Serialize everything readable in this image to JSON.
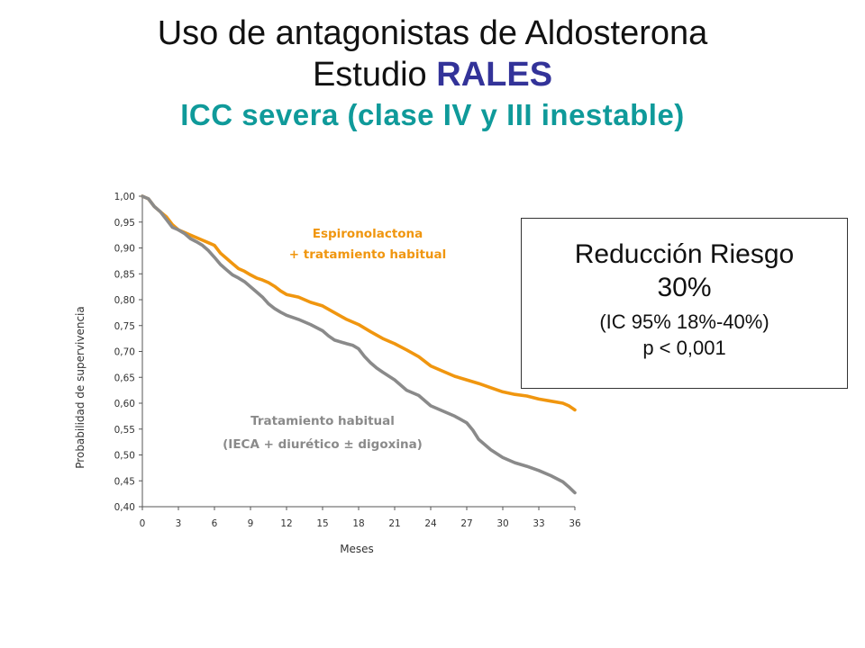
{
  "title": {
    "line1": "Uso de antagonistas de Aldosterona",
    "line2_prefix": "Estudio",
    "line2_accent": "RALES",
    "line3": "ICC severa (clase IV y III inestable)"
  },
  "colors": {
    "accent_blue": "#333399",
    "subtitle_teal": "#0f9a9a",
    "spironolactone": "#f0960f",
    "placebo": "#8a8a8a",
    "axis": "#555555"
  },
  "risk_box": {
    "line1": "Reducción Riesgo",
    "line2": "30%",
    "line3": "(IC 95% 18%-40%)",
    "line4": "p < 0,001"
  },
  "chart_data": {
    "type": "line",
    "xlabel": "Meses",
    "ylabel": "Probabilidad de supervivencia",
    "xlim": [
      0,
      36
    ],
    "ylim": [
      0.4,
      1.0
    ],
    "xticks": [
      "0",
      "3",
      "6",
      "9",
      "12",
      "15",
      "18",
      "21",
      "24",
      "27",
      "30",
      "33",
      "36"
    ],
    "yticks": [
      "0,40",
      "0,45",
      "0,50",
      "0,55",
      "0,60",
      "0,65",
      "0,70",
      "0,75",
      "0,80",
      "0,85",
      "0,90",
      "0,95",
      "1,00"
    ],
    "grid": false,
    "series": [
      {
        "name": "Espironolactona + tratamiento habitual",
        "label_lines": [
          "Espironolactona",
          "+ tratamiento habitual"
        ],
        "x": [
          0,
          0.5,
          1,
          1.5,
          2,
          2.5,
          3,
          3.5,
          4,
          4.5,
          5,
          5.5,
          6,
          6.5,
          7,
          7.5,
          8,
          8.5,
          9,
          9.5,
          10,
          10.5,
          11,
          11.5,
          12,
          13,
          14,
          15,
          16,
          17,
          18,
          19,
          20,
          21,
          22,
          23,
          24,
          25,
          26,
          27,
          28,
          29,
          30,
          31,
          32,
          33,
          34,
          35,
          35.5,
          36
        ],
        "y": [
          1.0,
          0.995,
          0.98,
          0.97,
          0.96,
          0.945,
          0.935,
          0.93,
          0.925,
          0.92,
          0.915,
          0.91,
          0.905,
          0.89,
          0.88,
          0.87,
          0.86,
          0.855,
          0.848,
          0.842,
          0.838,
          0.833,
          0.826,
          0.817,
          0.81,
          0.805,
          0.795,
          0.788,
          0.775,
          0.762,
          0.752,
          0.738,
          0.725,
          0.715,
          0.703,
          0.69,
          0.672,
          0.662,
          0.652,
          0.645,
          0.638,
          0.63,
          0.622,
          0.617,
          0.614,
          0.608,
          0.604,
          0.6,
          0.595,
          0.587
        ]
      },
      {
        "name": "Tratamiento habitual",
        "label_lines": [
          "Tratamiento habitual",
          "(IECA + diurético ± digoxina)"
        ],
        "x": [
          0,
          0.5,
          1,
          1.5,
          2,
          2.5,
          3,
          3.5,
          4,
          4.5,
          5,
          5.5,
          6,
          6.5,
          7,
          7.5,
          8,
          8.5,
          9,
          9.5,
          10,
          10.5,
          11,
          11.5,
          12,
          13,
          14,
          15,
          15.5,
          16,
          17,
          17.5,
          18,
          18.5,
          19,
          19.5,
          20,
          21,
          22,
          23,
          24,
          25,
          26,
          27,
          27.5,
          28,
          29,
          30,
          31,
          32,
          33,
          34,
          35,
          35.5,
          36
        ],
        "y": [
          1.0,
          0.995,
          0.98,
          0.97,
          0.955,
          0.94,
          0.935,
          0.928,
          0.918,
          0.912,
          0.905,
          0.895,
          0.882,
          0.868,
          0.858,
          0.848,
          0.842,
          0.835,
          0.825,
          0.815,
          0.805,
          0.792,
          0.783,
          0.776,
          0.77,
          0.762,
          0.752,
          0.74,
          0.73,
          0.722,
          0.715,
          0.712,
          0.705,
          0.69,
          0.678,
          0.668,
          0.66,
          0.645,
          0.625,
          0.615,
          0.595,
          0.585,
          0.575,
          0.562,
          0.548,
          0.53,
          0.51,
          0.495,
          0.485,
          0.478,
          0.47,
          0.46,
          0.448,
          0.438,
          0.427
        ]
      }
    ]
  }
}
